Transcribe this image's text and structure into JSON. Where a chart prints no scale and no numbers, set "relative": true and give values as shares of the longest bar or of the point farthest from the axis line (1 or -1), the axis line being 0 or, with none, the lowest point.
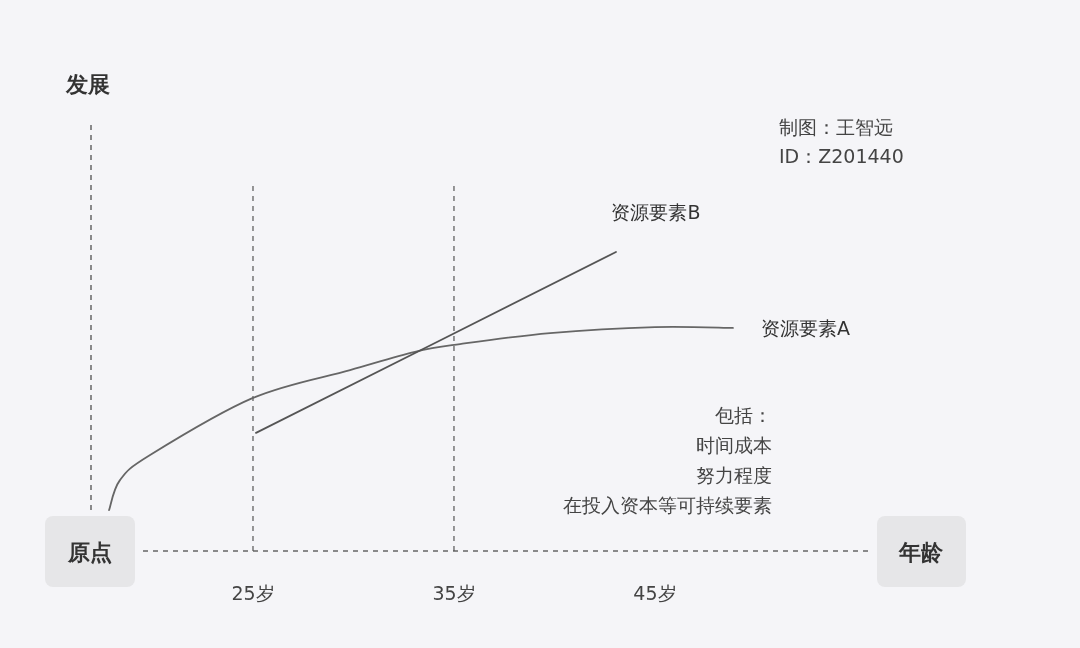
{
  "chart_data": {
    "type": "line",
    "relative": true,
    "xlabel": "年龄",
    "xlim": [
      16.94,
      55.6
    ],
    "xticks": [
      {
        "value": 25,
        "label": "25岁"
      },
      {
        "value": 35,
        "label": "35岁"
      },
      {
        "value": 45,
        "label": "45岁"
      }
    ],
    "series": [
      {
        "name": "资源要素A",
        "color": "#666666",
        "x": [
          17.84,
          18.38,
          19.88,
          25,
          29.83,
          33.06,
          35.3,
          39.78,
          45,
          48.88
        ],
        "values": [
          0.137,
          0.237,
          0.321,
          0.512,
          0.605,
          0.666,
          0.692,
          0.729,
          0.749,
          0.746
        ]
      },
      {
        "name": "资源要素B",
        "color": "#555555",
        "x": [
          25.15,
          43.06
        ],
        "values": [
          0.395,
          1
        ]
      }
    ],
    "ref_lines": [
      {
        "axis": "x",
        "value": 25,
        "color": "#555555",
        "line_style": "dashed"
      },
      {
        "axis": "x",
        "value": 35,
        "color": "#555555",
        "line_style": "dashed"
      }
    ],
    "annotations": [
      "原点",
      "制图：王智远",
      "ID：Z201440",
      "包括：",
      "时间成本",
      "努力程度",
      "在投入资本等可持续要素",
      "发展"
    ],
    "grid": false,
    "legend": false,
    "line_style": "solid",
    "marker": "none"
  }
}
